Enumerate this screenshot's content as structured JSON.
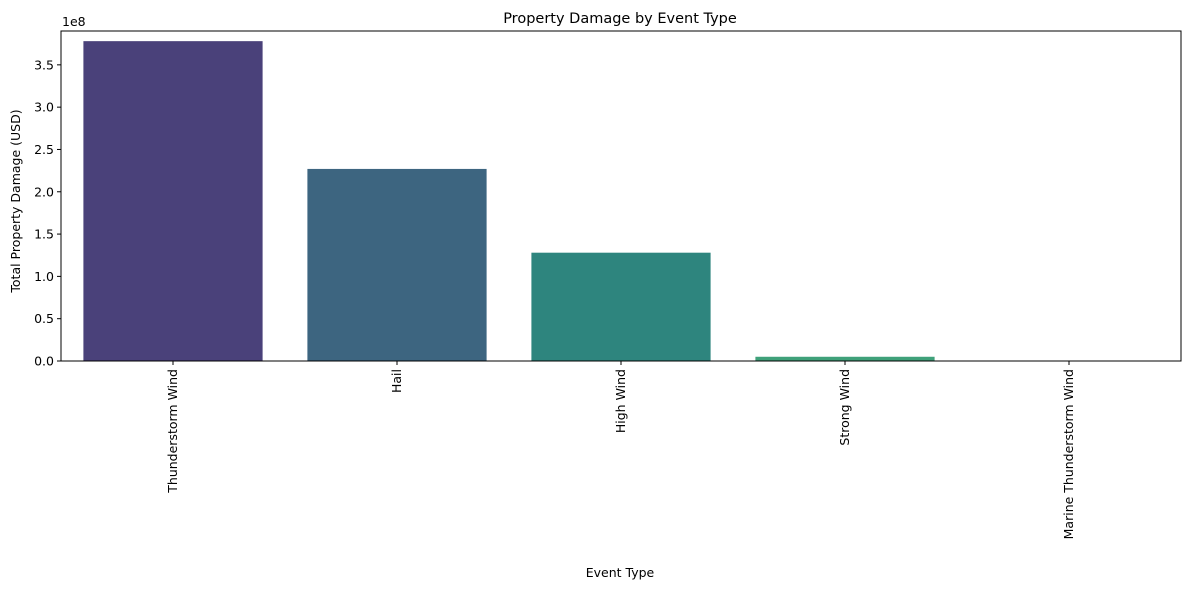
{
  "chart_data": {
    "type": "bar",
    "title": "Property Damage by Event Type",
    "xlabel": "Event Type",
    "ylabel": "Total Property Damage (USD)",
    "y_offset_label": "1e8",
    "categories": [
      "Thunderstorm Wind",
      "Hail",
      "High Wind",
      "Strong Wind",
      "Marine Thunderstorm Wind"
    ],
    "values": [
      378000000,
      227000000,
      128000000,
      5000000,
      50000
    ],
    "colors": [
      "#4a417a",
      "#3d6580",
      "#2e857e",
      "#3fa17a",
      "#55b86b"
    ],
    "ylim": [
      0,
      390000000
    ],
    "yticks": [
      0,
      50000000,
      100000000,
      150000000,
      200000000,
      250000000,
      300000000,
      350000000
    ],
    "ytick_labels": [
      "0.0",
      "0.5",
      "1.0",
      "1.5",
      "2.0",
      "2.5",
      "3.0",
      "3.5"
    ],
    "grid": false,
    "legend": "none"
  }
}
